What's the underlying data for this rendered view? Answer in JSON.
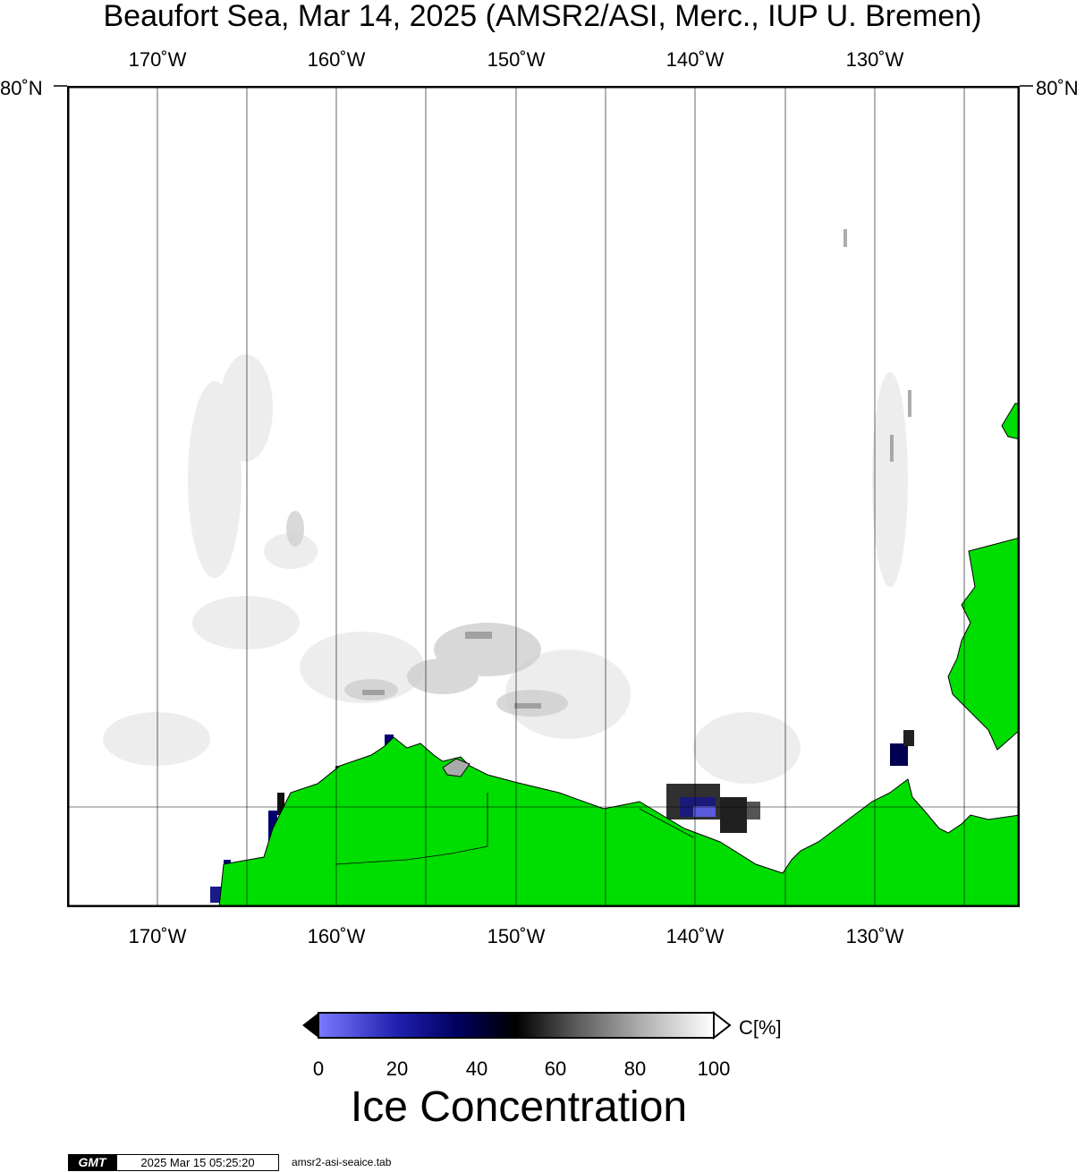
{
  "title": "Beaufort Sea, Mar 14, 2025 (AMSR2/ASI, Merc., IUP U. Bremen)",
  "axes": {
    "lon_labels": [
      "170˚W",
      "160˚W",
      "150˚W",
      "140˚W",
      "130˚W"
    ],
    "lat_label": "80˚N"
  },
  "colorbar": {
    "unit_label": "C[%]",
    "ticks": [
      "0",
      "20",
      "40",
      "60",
      "80",
      "100"
    ],
    "title": "Ice Concentration",
    "colors": {
      "low": "#7a7aff",
      "mid_low": "#000070",
      "mid": "#000000",
      "high": "#ffffff"
    }
  },
  "map_colors": {
    "land": "#00dd00",
    "ocean": "#ffffff",
    "coast": "#000000"
  },
  "footer": {
    "logo_text": "GMT",
    "timestamp": "2025 Mar 15 05:25:20",
    "filename": "amsr2-asi-seaice.tab"
  }
}
